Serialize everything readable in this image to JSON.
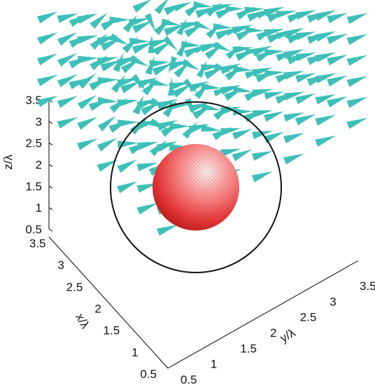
{
  "chart_data": {
    "type": "scatter",
    "description_kind": "3d-cone-vector-field",
    "axes": {
      "z": {
        "label": "z/λ",
        "ticks": [
          "0.5",
          "1",
          "1.5",
          "2",
          "2.5",
          "3",
          "3.5"
        ],
        "range": [
          0.5,
          3.5
        ]
      },
      "x": {
        "label": "x/λ",
        "ticks": [
          "0.5",
          "1",
          "1.5",
          "2",
          "2.5",
          "3",
          "3.5"
        ],
        "range": [
          0.5,
          3.5
        ]
      },
      "y": {
        "label": "y/λ",
        "ticks": [
          "0.5",
          "1",
          "1.5",
          "2",
          "2.5",
          "3",
          "3.5"
        ],
        "range": [
          0.5,
          3.5
        ]
      }
    },
    "grid_spacing": 0.5,
    "grid_values": [
      0.5,
      1,
      1.5,
      2,
      2.5,
      3,
      3.5
    ],
    "sphere": {
      "center": [
        2,
        2,
        2
      ],
      "radius": 0.5,
      "color": "#e84040"
    },
    "circle": {
      "center": [
        2,
        2,
        2
      ],
      "radius": 1.15,
      "color": "#111111"
    },
    "cone_color": "#3ec0b8",
    "grid": false,
    "legend": "none"
  }
}
